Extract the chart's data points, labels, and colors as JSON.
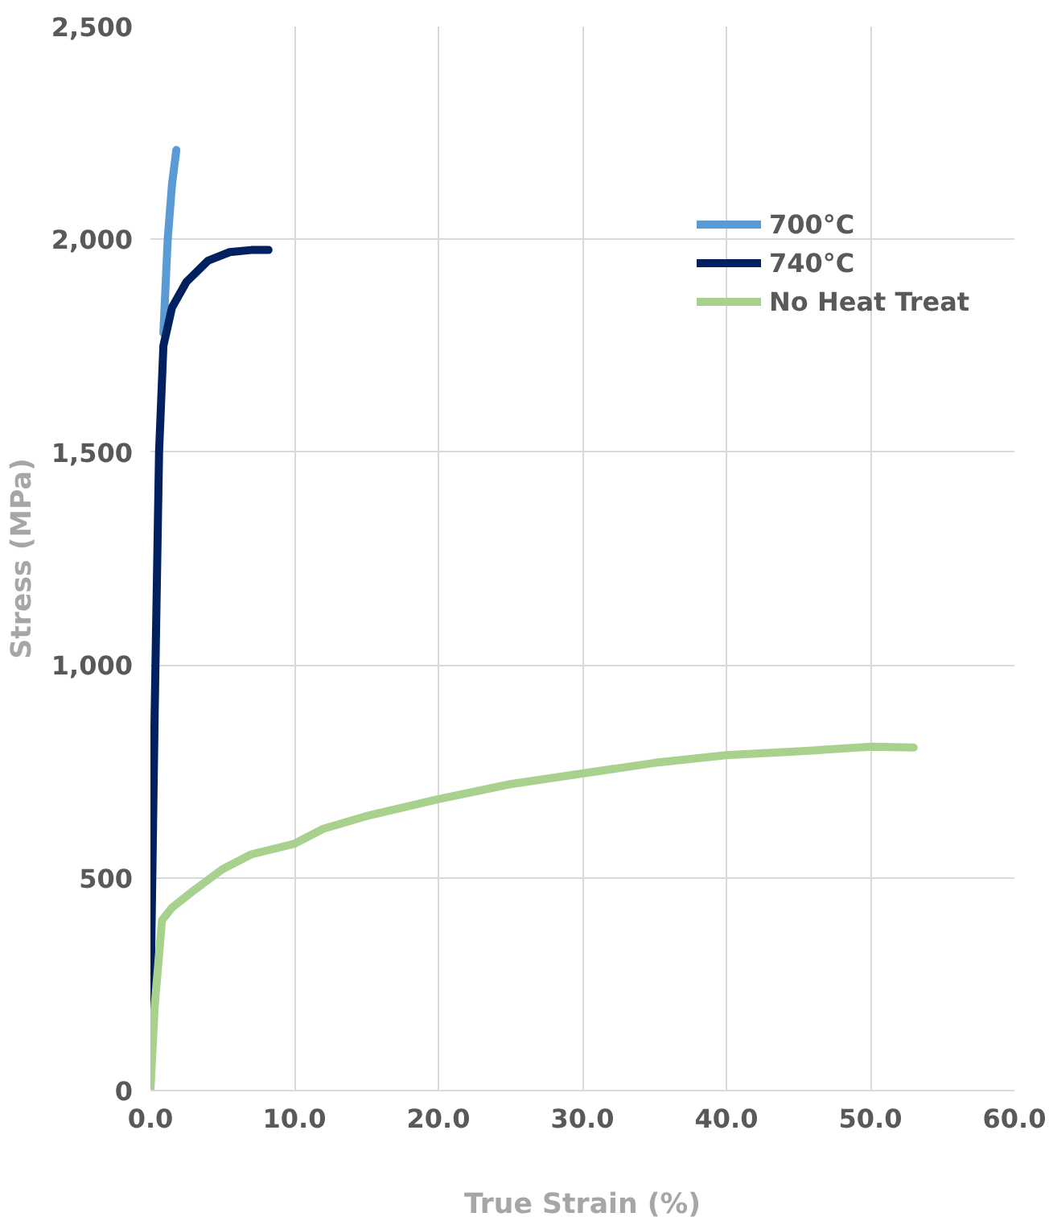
{
  "chart_data": {
    "type": "line",
    "xlabel": "True Strain (%)",
    "ylabel": "Stress (MPa)",
    "xlim": [
      0,
      60
    ],
    "ylim": [
      0,
      2500
    ],
    "xticks": [
      {
        "value": 0,
        "label": "0.0"
      },
      {
        "value": 10,
        "label": "10.0"
      },
      {
        "value": 20,
        "label": "20.0"
      },
      {
        "value": 30,
        "label": "30.0"
      },
      {
        "value": 40,
        "label": "40.0"
      },
      {
        "value": 50,
        "label": "50.0"
      },
      {
        "value": 60,
        "label": "60.0"
      }
    ],
    "yticks": [
      0,
      {
        "value": 500,
        "label": "500"
      },
      {
        "value": 1000,
        "label": "1,000"
      },
      {
        "value": 1500,
        "label": "1,500"
      },
      {
        "value": 2000,
        "label": "2,000"
      },
      {
        "value": 2500,
        "label": "2,500"
      }
    ],
    "grid": true,
    "legend": "top right",
    "marker": "none",
    "line_style": "solid",
    "series": [
      {
        "name": "700°C",
        "color": "#5b9bd5",
        "x": [
          0.9,
          1.2,
          1.5,
          1.8
        ],
        "values": [
          1780,
          2000,
          2130,
          2210
        ]
      },
      {
        "name": "740°C",
        "color": "#002060",
        "x": [
          0,
          0.3,
          0.6,
          0.9,
          1.5,
          2.5,
          4,
          5.5,
          7,
          8.2
        ],
        "values": [
          200,
          900,
          1500,
          1750,
          1840,
          1900,
          1950,
          1970,
          1975,
          1975
        ]
      },
      {
        "name": "No Heat Treat",
        "color": "#a9d18e",
        "x": [
          0,
          0.3,
          0.8,
          1.5,
          3,
          5,
          7,
          10,
          12,
          15,
          20,
          25,
          30,
          35,
          40,
          45,
          50,
          53
        ],
        "values": [
          0,
          200,
          400,
          430,
          470,
          520,
          555,
          580,
          615,
          645,
          685,
          720,
          745,
          770,
          788,
          797,
          808,
          806
        ]
      }
    ]
  }
}
